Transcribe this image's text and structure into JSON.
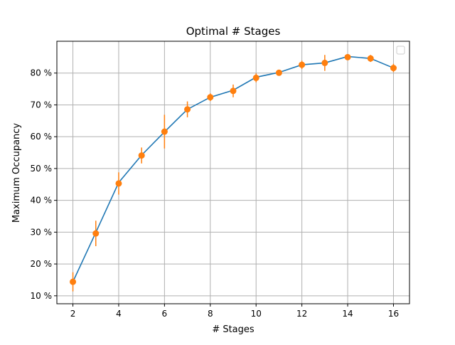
{
  "chart_data": {
    "type": "line",
    "title": "Optimal # Stages",
    "xlabel": "# Stages",
    "ylabel": "Maximum Occupancy",
    "xlim": [
      1.3,
      16.7
    ],
    "ylim": [
      7.5,
      90.0
    ],
    "x_ticks": [
      2,
      4,
      6,
      8,
      10,
      12,
      14,
      16
    ],
    "x_tick_labels": [
      "2",
      "4",
      "6",
      "8",
      "10",
      "12",
      "14",
      "16"
    ],
    "y_ticks": [
      10,
      20,
      30,
      40,
      50,
      60,
      70,
      80
    ],
    "y_tick_labels": [
      "10 %",
      "20 %",
      "30 %",
      "40 %",
      "50 %",
      "60 %",
      "70 %",
      "80 %"
    ],
    "grid": true,
    "legend": "top-right (empty)",
    "colors": {
      "line": "#1f77b4",
      "markers": "#ff7f0e",
      "grid": "#b0b0b0"
    },
    "x": [
      2,
      3,
      4,
      5,
      6,
      7,
      8,
      9,
      10,
      11,
      12,
      13,
      14,
      15,
      16
    ],
    "series": [
      {
        "mean_line": [
          14.4,
          29.9,
          45.6,
          54.2,
          61.5,
          68.6,
          72.4,
          74.6,
          78.7,
          80.2,
          82.6,
          83.2,
          85.2,
          84.6,
          81.6
        ]
      },
      {
        "points": [
          14.4,
          29.6,
          45.3,
          54.1,
          61.6,
          68.6,
          72.4,
          74.4,
          78.5,
          80.1,
          82.6,
          83.2,
          85.0,
          84.6,
          81.6
        ],
        "error": [
          3.0,
          4.0,
          3.5,
          2.5,
          5.3,
          2.5,
          1.2,
          2.0,
          1.4,
          0.9,
          1.3,
          2.5,
          0.8,
          1.1,
          1.3
        ]
      }
    ]
  }
}
